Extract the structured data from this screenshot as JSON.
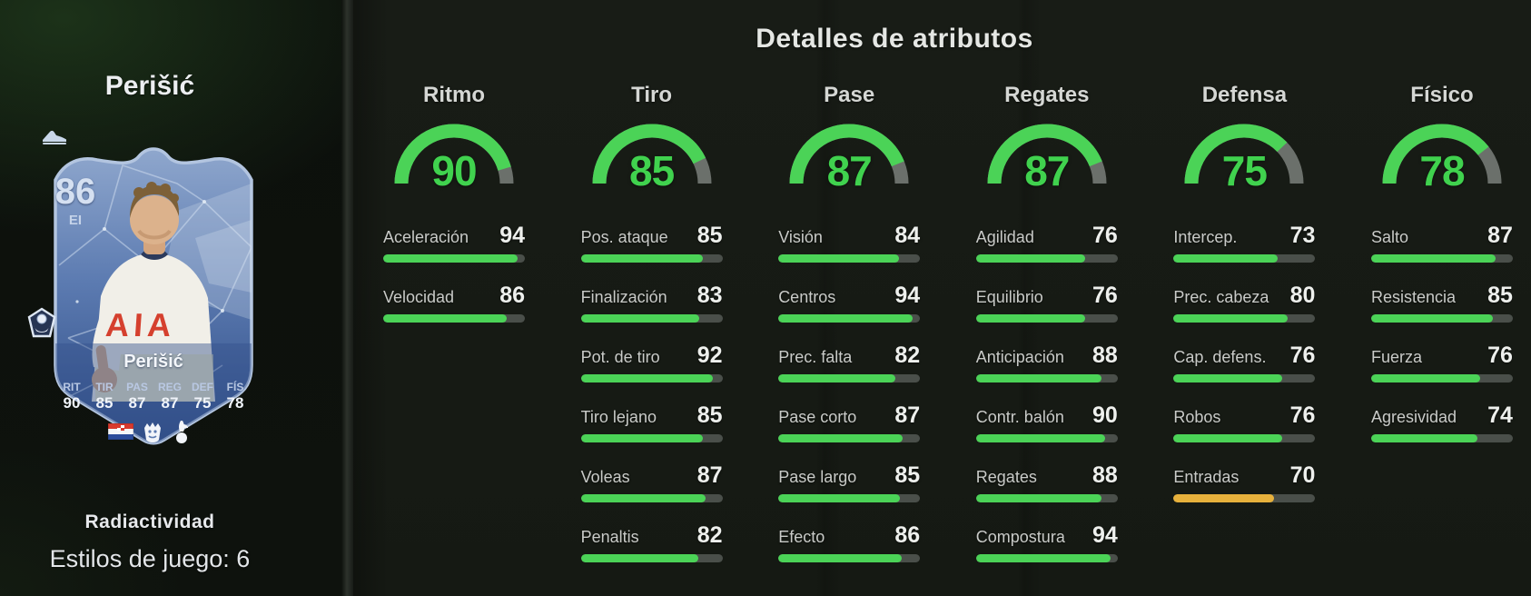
{
  "page": {
    "header": "Detalles de atributos"
  },
  "player": {
    "name": "Perišić",
    "card_name": "Perišić",
    "rating": "86",
    "position": "EI",
    "shirt_text": "AIA",
    "chem_style": "Radiactividad",
    "playstyles_label": "Estilos de juego: 6",
    "mini_stats": [
      {
        "label": "RIT",
        "value": "90"
      },
      {
        "label": "TIR",
        "value": "85"
      },
      {
        "label": "PAS",
        "value": "87"
      },
      {
        "label": "REG",
        "value": "87"
      },
      {
        "label": "DEF",
        "value": "75"
      },
      {
        "label": "FÍS",
        "value": "78"
      }
    ]
  },
  "icons": {
    "boot": "boot-icon",
    "playstyle_badge": "playstyle-plus-badge-icon",
    "flag": "croatia-flag-icon",
    "league": "premier-league-icon",
    "club": "tottenham-crest-icon"
  },
  "colors": {
    "green": "#4bd357",
    "number_green": "#40d24e",
    "orange": "#e7b13c",
    "gauge_track": "#6b706b",
    "bar_track": "#4a4f4a",
    "card_border": "#b3c5e0"
  },
  "attributes": {
    "scale_max": 99,
    "columns": [
      {
        "name": "Ritmo",
        "value": 90,
        "stats": [
          {
            "label": "Aceleración",
            "value": 94
          },
          {
            "label": "Velocidad",
            "value": 86
          }
        ]
      },
      {
        "name": "Tiro",
        "value": 85,
        "stats": [
          {
            "label": "Pos. ataque",
            "value": 85
          },
          {
            "label": "Finalización",
            "value": 83
          },
          {
            "label": "Pot. de tiro",
            "value": 92
          },
          {
            "label": "Tiro lejano",
            "value": 85
          },
          {
            "label": "Voleas",
            "value": 87
          },
          {
            "label": "Penaltis",
            "value": 82
          }
        ]
      },
      {
        "name": "Pase",
        "value": 87,
        "stats": [
          {
            "label": "Visión",
            "value": 84
          },
          {
            "label": "Centros",
            "value": 94
          },
          {
            "label": "Prec. falta",
            "value": 82
          },
          {
            "label": "Pase corto",
            "value": 87
          },
          {
            "label": "Pase largo",
            "value": 85
          },
          {
            "label": "Efecto",
            "value": 86
          }
        ]
      },
      {
        "name": "Regates",
        "value": 87,
        "stats": [
          {
            "label": "Agilidad",
            "value": 76
          },
          {
            "label": "Equilibrio",
            "value": 76
          },
          {
            "label": "Anticipación",
            "value": 88
          },
          {
            "label": "Contr. balón",
            "value": 90
          },
          {
            "label": "Regates",
            "value": 88
          },
          {
            "label": "Compostura",
            "value": 94
          }
        ]
      },
      {
        "name": "Defensa",
        "value": 75,
        "stats": [
          {
            "label": "Intercep.",
            "value": 73
          },
          {
            "label": "Prec. cabeza",
            "value": 80
          },
          {
            "label": "Cap. defens.",
            "value": 76
          },
          {
            "label": "Robos",
            "value": 76
          },
          {
            "label": "Entradas",
            "value": 70,
            "bar": "orange"
          }
        ]
      },
      {
        "name": "Físico",
        "value": 78,
        "stats": [
          {
            "label": "Salto",
            "value": 87
          },
          {
            "label": "Resistencia",
            "value": 85
          },
          {
            "label": "Fuerza",
            "value": 76
          },
          {
            "label": "Agresividad",
            "value": 74
          }
        ]
      }
    ]
  }
}
